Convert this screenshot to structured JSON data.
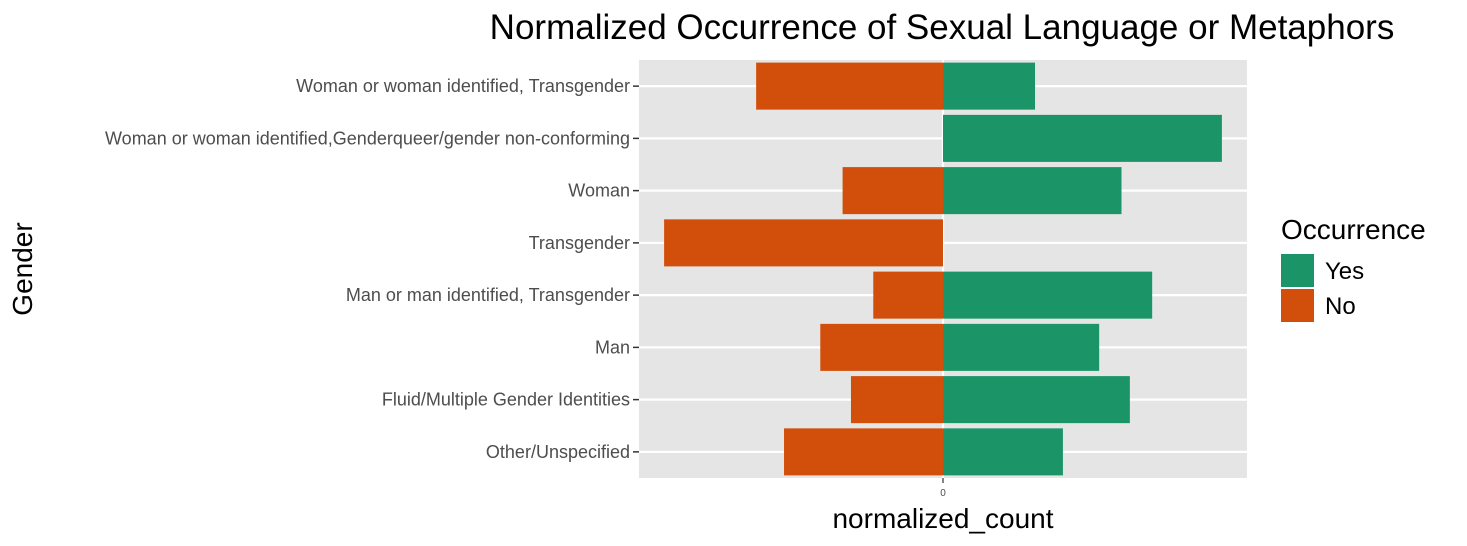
{
  "chart_data": {
    "type": "bar",
    "orientation": "horizontal",
    "title": "Normalized Occurrence of Sexual Language or Metaphors",
    "xlabel": "normalized_count",
    "ylabel": "Gender",
    "x_tick_labels": [
      "0"
    ],
    "xlim": [
      -1.09,
      1.09
    ],
    "categories": [
      "Woman or woman identified, Transgender",
      "Woman or woman identified,Genderqueer/gender non-conforming",
      "Woman",
      "Transgender",
      "Man or man identified, Transgender",
      "Man",
      "Fluid/Multiple Gender Identities",
      "Other/Unspecified"
    ],
    "series": [
      {
        "name": "Yes",
        "color": "#1b9468",
        "values": [
          0.33,
          1.0,
          0.64,
          0.0,
          0.75,
          0.56,
          0.67,
          0.43
        ]
      },
      {
        "name": "No",
        "color": "#d14f0a",
        "values": [
          -0.67,
          0.0,
          -0.36,
          -1.0,
          -0.25,
          -0.44,
          -0.33,
          -0.57
        ]
      }
    ],
    "legend": {
      "title": "Occurrence",
      "position": "right"
    },
    "grid": true,
    "panel_background": "#e5e5e5"
  }
}
